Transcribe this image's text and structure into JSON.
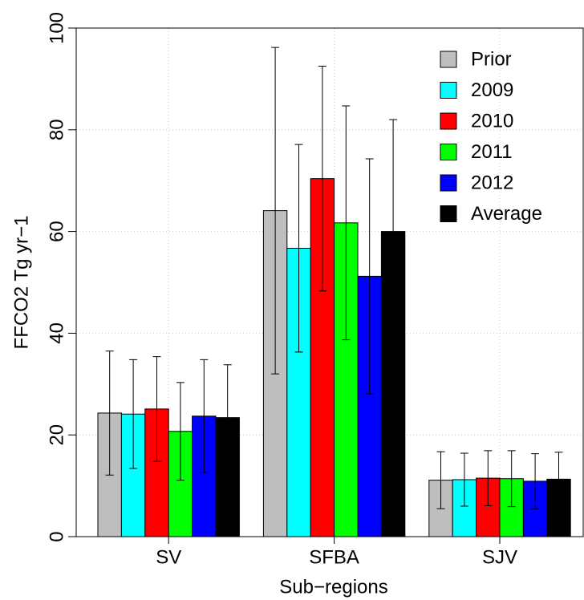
{
  "chart_data": {
    "type": "bar",
    "ylabel": "FFCO2 Tg yr−1",
    "xlabel": "Sub−regions",
    "categories": [
      "SV",
      "SFBA",
      "SJV"
    ],
    "series": [
      {
        "name": "Prior",
        "color": "#bebebe",
        "values": [
          24.3,
          64.1,
          11.1
        ],
        "errors": [
          12.2,
          32.1,
          5.6
        ]
      },
      {
        "name": "2009",
        "color": "#00ffff",
        "values": [
          24.1,
          56.7,
          11.2
        ],
        "errors": [
          10.7,
          20.4,
          5.2
        ]
      },
      {
        "name": "2010",
        "color": "#ff0000",
        "values": [
          25.1,
          70.4,
          11.5
        ],
        "errors": [
          10.3,
          22.1,
          5.4
        ]
      },
      {
        "name": "2011",
        "color": "#00ff00",
        "values": [
          20.7,
          61.7,
          11.4
        ],
        "errors": [
          9.6,
          23.0,
          5.5
        ]
      },
      {
        "name": "2012",
        "color": "#0000ff",
        "values": [
          23.7,
          51.2,
          10.9
        ],
        "errors": [
          11.1,
          23.1,
          5.4
        ]
      },
      {
        "name": "Average",
        "color": "#000000",
        "values": [
          23.4,
          60.0,
          11.3
        ],
        "errors": [
          10.4,
          22.0,
          5.3
        ]
      }
    ],
    "ylim": [
      0,
      100
    ],
    "yticks": [
      0,
      20,
      40,
      60,
      80,
      100
    ],
    "grid": true,
    "legend": "top-right"
  }
}
